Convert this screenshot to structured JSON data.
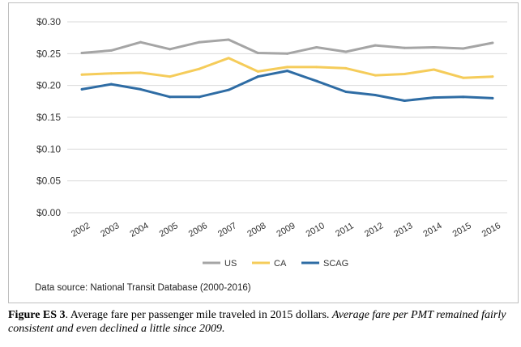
{
  "chart_data": {
    "type": "line",
    "categories": [
      "2002",
      "2003",
      "2004",
      "2005",
      "2006",
      "2007",
      "2008",
      "2009",
      "2010",
      "2011",
      "2012",
      "2013",
      "2014",
      "2015",
      "2016"
    ],
    "series": [
      {
        "name": "US",
        "color": "#a5a5a5",
        "values": [
          0.251,
          0.255,
          0.268,
          0.257,
          0.268,
          0.272,
          0.251,
          0.25,
          0.26,
          0.253,
          0.263,
          0.259,
          0.26,
          0.258,
          0.267
        ]
      },
      {
        "name": "CA",
        "color": "#f5cc5a",
        "values": [
          0.217,
          0.219,
          0.22,
          0.214,
          0.226,
          0.243,
          0.222,
          0.229,
          0.229,
          0.227,
          0.216,
          0.218,
          0.225,
          0.212,
          0.214
        ]
      },
      {
        "name": "SCAG",
        "color": "#2e6ca4",
        "values": [
          0.194,
          0.202,
          0.194,
          0.182,
          0.182,
          0.193,
          0.214,
          0.223,
          0.207,
          0.19,
          0.185,
          0.176,
          0.181,
          0.182,
          0.18
        ]
      }
    ],
    "ylim": [
      0,
      0.3
    ],
    "yticks": [
      0,
      0.05,
      0.1,
      0.15,
      0.2,
      0.25,
      0.3
    ],
    "ytick_labels": [
      "$0.00",
      "$0.05",
      "$0.10",
      "$0.15",
      "$0.20",
      "$0.25",
      "$0.30"
    ],
    "grid": true,
    "legend_position": "bottom",
    "title": "",
    "xlabel": "",
    "ylabel": ""
  },
  "source_text": "Data source: National Transit Database (2000-2016)",
  "caption": {
    "label": "Figure ES 3",
    "text": ". Average fare per passenger mile traveled in 2015 dollars. ",
    "note": "Average fare per PMT remained fairly consistent and even declined a little since 2009."
  }
}
